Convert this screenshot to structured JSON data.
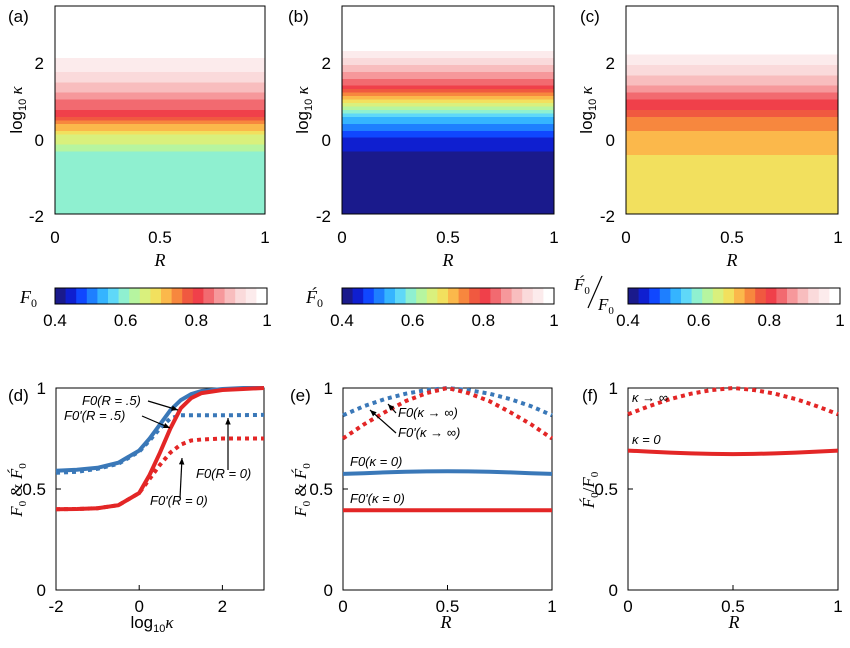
{
  "panel_labels": [
    "(a)",
    "(b)",
    "(c)",
    "(d)",
    "(e)",
    "(f)"
  ],
  "colormap": [
    "#1a1a8c",
    "#0f1fd0",
    "#1047ff",
    "#1e7fff",
    "#35b4ff",
    "#5fd8f8",
    "#8ff0d0",
    "#b6f5a0",
    "#d9f07d",
    "#f2e05e",
    "#fbb84b",
    "#f7873e",
    "#f05940",
    "#f0404a",
    "#f26a70",
    "#f6989b",
    "#f8bdbe",
    "#fadadb",
    "#fcebec",
    "#ffffff"
  ],
  "chart_data": [
    {
      "id": "a",
      "type": "heatmap",
      "xlabel": "R",
      "ylabel": "log10 κ",
      "xlim": [
        0,
        1
      ],
      "ylim": [
        -2,
        3.5
      ],
      "x_ticks": [
        "0",
        "0.5",
        "1"
      ],
      "y_ticks": [
        "-2",
        "0",
        "2"
      ],
      "quantity": "F0",
      "levels": [
        {
          "log10_kappa": -2,
          "value": 0.6
        },
        {
          "log10_kappa": -0.5,
          "value": 0.6
        },
        {
          "log10_kappa": 0,
          "value": 0.66
        },
        {
          "log10_kappa": 0.5,
          "value": 0.78
        },
        {
          "log10_kappa": 1,
          "value": 0.86
        },
        {
          "log10_kappa": 1.5,
          "value": 0.92
        },
        {
          "log10_kappa": 2.5,
          "value": 1.0
        }
      ]
    },
    {
      "id": "b",
      "type": "heatmap",
      "xlabel": "R",
      "ylabel": "log10 κ",
      "xlim": [
        0,
        1
      ],
      "ylim": [
        -2,
        3.5
      ],
      "x_ticks": [
        "0",
        "0.5",
        "1"
      ],
      "y_ticks": [
        "-2",
        "0",
        "2"
      ],
      "quantity": "F0'",
      "levels": [
        {
          "log10_kappa": -2,
          "value": 0.41
        },
        {
          "log10_kappa": -0.5,
          "value": 0.42
        },
        {
          "log10_kappa": 0,
          "value": 0.46
        },
        {
          "log10_kappa": 0.5,
          "value": 0.55
        },
        {
          "log10_kappa": 1,
          "value": 0.72
        },
        {
          "log10_kappa": 1.5,
          "value": 0.85
        },
        {
          "log10_kappa": 2.5,
          "value": 1.0
        }
      ]
    },
    {
      "id": "c",
      "type": "heatmap",
      "xlabel": "R",
      "ylabel": "log10 κ",
      "xlim": [
        0,
        1
      ],
      "ylim": [
        -2,
        3.5
      ],
      "x_ticks": [
        "0",
        "0.5",
        "1"
      ],
      "y_ticks": [
        "-2",
        "0",
        "2"
      ],
      "quantity": "F0'/F0",
      "levels": [
        {
          "log10_kappa": -2,
          "value": 0.69
        },
        {
          "log10_kappa": -0.5,
          "value": 0.7
        },
        {
          "log10_kappa": 0,
          "value": 0.72
        },
        {
          "log10_kappa": 0.5,
          "value": 0.76
        },
        {
          "log10_kappa": 1,
          "value": 0.82
        },
        {
          "log10_kappa": 1.5,
          "value": 0.9
        },
        {
          "log10_kappa": 2.5,
          "value": 1.0
        }
      ]
    },
    {
      "id": "colorbars",
      "type": "heatmap",
      "labels": [
        "F0",
        "F0'",
        "F0'/F0"
      ],
      "range": [
        0.4,
        1.0
      ],
      "ticks": [
        "0.4",
        "0.6",
        "0.8",
        "1"
      ]
    },
    {
      "id": "d",
      "type": "line",
      "xlabel": "log10 κ",
      "ylabel": "F0 & F0'",
      "xlim": [
        -2,
        3
      ],
      "ylim": [
        0,
        1
      ],
      "x_ticks": [
        "-2",
        "0",
        "2"
      ],
      "y_ticks": [
        "0",
        "0.5",
        "1"
      ],
      "x": [
        -2,
        -1.5,
        -1,
        -0.5,
        0,
        0.25,
        0.5,
        0.75,
        1,
        1.25,
        1.5,
        2,
        2.5,
        3
      ],
      "series": [
        {
          "name": "F0(R = .5)",
          "color": "#3a78b8",
          "style": "solid",
          "values": [
            0.59,
            0.595,
            0.605,
            0.63,
            0.69,
            0.75,
            0.82,
            0.89,
            0.94,
            0.97,
            0.985,
            0.995,
            1.0,
            1.0
          ]
        },
        {
          "name": "F0'(R = .5)",
          "color": "#3a78b8",
          "style": "dotted",
          "values": [
            0.58,
            0.585,
            0.6,
            0.625,
            0.685,
            0.74,
            0.8,
            0.85,
            0.865,
            0.865,
            0.865,
            0.865,
            0.866,
            0.867
          ]
        },
        {
          "name": "F0(R = 0)",
          "color": "#e32626",
          "style": "solid",
          "values": [
            0.4,
            0.401,
            0.405,
            0.42,
            0.48,
            0.57,
            0.68,
            0.8,
            0.9,
            0.95,
            0.975,
            0.99,
            0.995,
            1.0
          ]
        },
        {
          "name": "F0'(R = 0)",
          "color": "#e32626",
          "style": "dotted",
          "values": [
            0.4,
            0.401,
            0.405,
            0.42,
            0.48,
            0.55,
            0.62,
            0.68,
            0.72,
            0.74,
            0.745,
            0.75,
            0.75,
            0.75
          ]
        }
      ]
    },
    {
      "id": "e",
      "type": "line",
      "xlabel": "R",
      "ylabel": "F0 & F0'",
      "xlim": [
        0,
        1
      ],
      "ylim": [
        0,
        1
      ],
      "x_ticks": [
        "0",
        "0.5",
        "1"
      ],
      "y_ticks": [
        "0",
        "0.5",
        "1"
      ],
      "x": [
        0,
        0.1,
        0.2,
        0.3,
        0.4,
        0.5,
        0.6,
        0.7,
        0.8,
        0.9,
        1
      ],
      "series": [
        {
          "name": "F0(κ → ∞)",
          "color": "#3a78b8",
          "style": "dotted",
          "values": [
            0.865,
            0.91,
            0.945,
            0.972,
            0.99,
            1.0,
            0.99,
            0.972,
            0.945,
            0.91,
            0.865
          ]
        },
        {
          "name": "F0'(κ → ∞)",
          "color": "#e32626",
          "style": "dotted",
          "values": [
            0.75,
            0.82,
            0.88,
            0.935,
            0.975,
            1.0,
            0.975,
            0.935,
            0.88,
            0.82,
            0.75
          ]
        },
        {
          "name": "F0(κ = 0)",
          "color": "#3a78b8",
          "style": "solid",
          "values": [
            0.575,
            0.578,
            0.582,
            0.585,
            0.587,
            0.588,
            0.587,
            0.585,
            0.582,
            0.578,
            0.575
          ]
        },
        {
          "name": "F0'(κ = 0)",
          "color": "#e32626",
          "style": "solid",
          "values": [
            0.395,
            0.395,
            0.395,
            0.395,
            0.395,
            0.395,
            0.395,
            0.395,
            0.395,
            0.395,
            0.395
          ]
        }
      ]
    },
    {
      "id": "f",
      "type": "line",
      "xlabel": "R",
      "ylabel": "F0'/F0",
      "xlim": [
        0,
        1
      ],
      "ylim": [
        0,
        1
      ],
      "x_ticks": [
        "0",
        "0.5",
        "1"
      ],
      "y_ticks": [
        "0",
        "0.5",
        "1"
      ],
      "x": [
        0,
        0.1,
        0.2,
        0.3,
        0.4,
        0.5,
        0.6,
        0.7,
        0.8,
        0.9,
        1
      ],
      "series": [
        {
          "name": "κ → ∞",
          "color": "#e32626",
          "style": "dotted",
          "values": [
            0.87,
            0.91,
            0.945,
            0.972,
            0.99,
            1.0,
            0.99,
            0.972,
            0.945,
            0.91,
            0.87
          ]
        },
        {
          "name": "κ = 0",
          "color": "#e32626",
          "style": "solid",
          "values": [
            0.69,
            0.685,
            0.68,
            0.676,
            0.674,
            0.673,
            0.674,
            0.676,
            0.68,
            0.685,
            0.69
          ]
        }
      ]
    }
  ]
}
